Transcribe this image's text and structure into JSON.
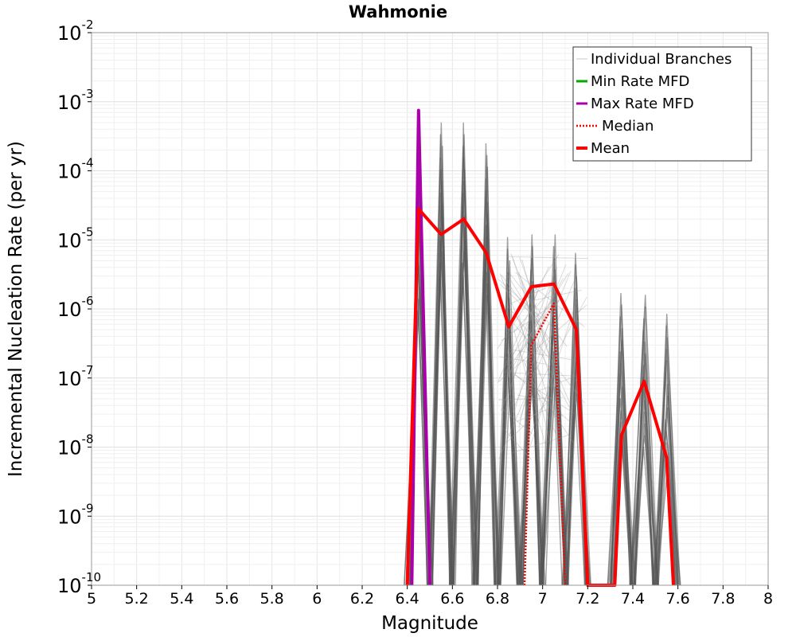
{
  "chart_data": {
    "type": "line",
    "title": "Wahmonie",
    "xlabel": "Magnitude",
    "ylabel": "Incremental Nucleation Rate (per yr)",
    "xlim": [
      5,
      8
    ],
    "ylim": [
      1e-10,
      0.01
    ],
    "yscale": "log",
    "grid": true,
    "legend_position": "top-right",
    "x_ticks": [
      "5",
      "5.2",
      "5.4",
      "5.6",
      "5.8",
      "6",
      "6.2",
      "6.4",
      "6.6",
      "6.8",
      "7",
      "7.2",
      "7.4",
      "7.6",
      "7.8",
      "8"
    ],
    "y_ticks": [
      {
        "base": "10",
        "exp": "-10"
      },
      {
        "base": "10",
        "exp": "-9"
      },
      {
        "base": "10",
        "exp": "-8"
      },
      {
        "base": "10",
        "exp": "-7"
      },
      {
        "base": "10",
        "exp": "-6"
      },
      {
        "base": "10",
        "exp": "-5"
      },
      {
        "base": "10",
        "exp": "-4"
      },
      {
        "base": "10",
        "exp": "-3"
      },
      {
        "base": "10",
        "exp": "-2"
      }
    ],
    "legend": [
      {
        "label": "Individual Branches",
        "color": "#c8c8c8",
        "style": "thin"
      },
      {
        "label": "Min Rate MFD",
        "color": "#00aa00",
        "style": "solid"
      },
      {
        "label": "Max Rate MFD",
        "color": "#aa00aa",
        "style": "solid"
      },
      {
        "label": "Median",
        "color": "#ff0000",
        "style": "dotted"
      },
      {
        "label": "Mean",
        "color": "#ff0000",
        "style": "thick"
      }
    ],
    "series": [
      {
        "name": "Mean",
        "color": "#ff0000",
        "x": [
          6.4,
          6.45,
          6.55,
          6.65,
          6.75,
          6.85,
          6.95,
          7.05,
          7.15,
          7.2,
          7.32,
          7.35,
          7.45,
          7.55,
          7.58
        ],
        "y": [
          1e-10,
          2.8e-05,
          1.2e-05,
          2e-05,
          6.5e-06,
          5.5e-07,
          2.1e-06,
          2.3e-06,
          5e-07,
          1e-10,
          1e-10,
          1.5e-08,
          9e-08,
          7e-09,
          1e-10
        ]
      },
      {
        "name": "Median",
        "color": "#ff0000",
        "x": [
          6.92,
          6.95,
          7.05,
          7.1
        ],
        "y": [
          1e-10,
          3e-07,
          1.2e-06,
          1e-10
        ]
      },
      {
        "name": "Max Rate MFD",
        "color": "#aa00aa",
        "x": [
          6.42,
          6.45,
          6.5
        ],
        "y": [
          1e-10,
          0.00075,
          1e-10
        ]
      },
      {
        "name": "Individual Branches",
        "color": "#555555",
        "spikes": [
          {
            "x": 6.45,
            "ymax": 0.00015
          },
          {
            "x": 6.55,
            "ymax": 0.0005
          },
          {
            "x": 6.65,
            "ymax": 0.0005
          },
          {
            "x": 6.75,
            "ymax": 0.00025
          },
          {
            "x": 6.85,
            "ymax": 1.1e-05
          },
          {
            "x": 6.95,
            "ymax": 1.2e-05
          },
          {
            "x": 7.05,
            "ymax": 1.2e-05
          },
          {
            "x": 7.15,
            "ymax": 6.5e-06
          },
          {
            "x": 7.35,
            "ymax": 1.7e-06
          },
          {
            "x": 7.45,
            "ymax": 1.6e-06
          },
          {
            "x": 7.55,
            "ymax": 8.5e-07
          }
        ]
      }
    ]
  }
}
